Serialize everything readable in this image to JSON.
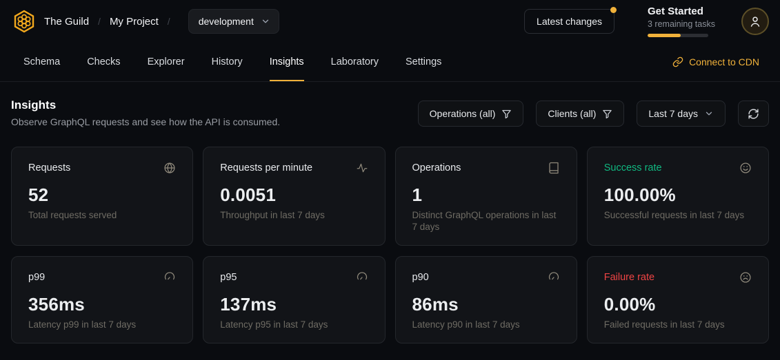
{
  "colors": {
    "accent": "#f0b13a",
    "success": "#10b981",
    "failure": "#ef4444"
  },
  "header": {
    "org": "The Guild",
    "project": "My Project",
    "separator": "/",
    "target_selector": {
      "value": "development"
    },
    "latest_changes_label": "Latest changes",
    "get_started": {
      "title": "Get Started",
      "subtitle": "3 remaining tasks",
      "progress_percent": 55
    }
  },
  "nav": {
    "tabs": [
      {
        "label": "Schema",
        "active": false
      },
      {
        "label": "Checks",
        "active": false
      },
      {
        "label": "Explorer",
        "active": false
      },
      {
        "label": "History",
        "active": false
      },
      {
        "label": "Insights",
        "active": true
      },
      {
        "label": "Laboratory",
        "active": false
      },
      {
        "label": "Settings",
        "active": false
      }
    ],
    "connect_cdn_label": "Connect to CDN"
  },
  "insights": {
    "title": "Insights",
    "subtitle": "Observe GraphQL requests and see how the API is consumed.",
    "filters": {
      "operations_label": "Operations (all)",
      "clients_label": "Clients (all)",
      "period_label": "Last 7 days"
    }
  },
  "cards": [
    {
      "title": "Requests",
      "value": "52",
      "description": "Total requests served",
      "icon": "globe-icon"
    },
    {
      "title": "Requests per minute",
      "value": "0.0051",
      "description": "Throughput in last 7 days",
      "icon": "activity-icon"
    },
    {
      "title": "Operations",
      "value": "1",
      "description": "Distinct GraphQL operations in last 7 days",
      "icon": "book-icon"
    },
    {
      "title": "Success rate",
      "value": "100.00%",
      "description": "Successful requests in last 7 days",
      "icon": "smile-icon"
    },
    {
      "title": "p99",
      "value": "356ms",
      "description": "Latency p99 in last 7 days",
      "icon": "gauge-icon"
    },
    {
      "title": "p95",
      "value": "137ms",
      "description": "Latency p95 in last 7 days",
      "icon": "gauge-icon"
    },
    {
      "title": "p90",
      "value": "86ms",
      "description": "Latency p90 in last 7 days",
      "icon": "gauge-icon"
    },
    {
      "title": "Failure rate",
      "value": "0.00%",
      "description": "Failed requests in last 7 days",
      "icon": "frown-icon"
    }
  ]
}
